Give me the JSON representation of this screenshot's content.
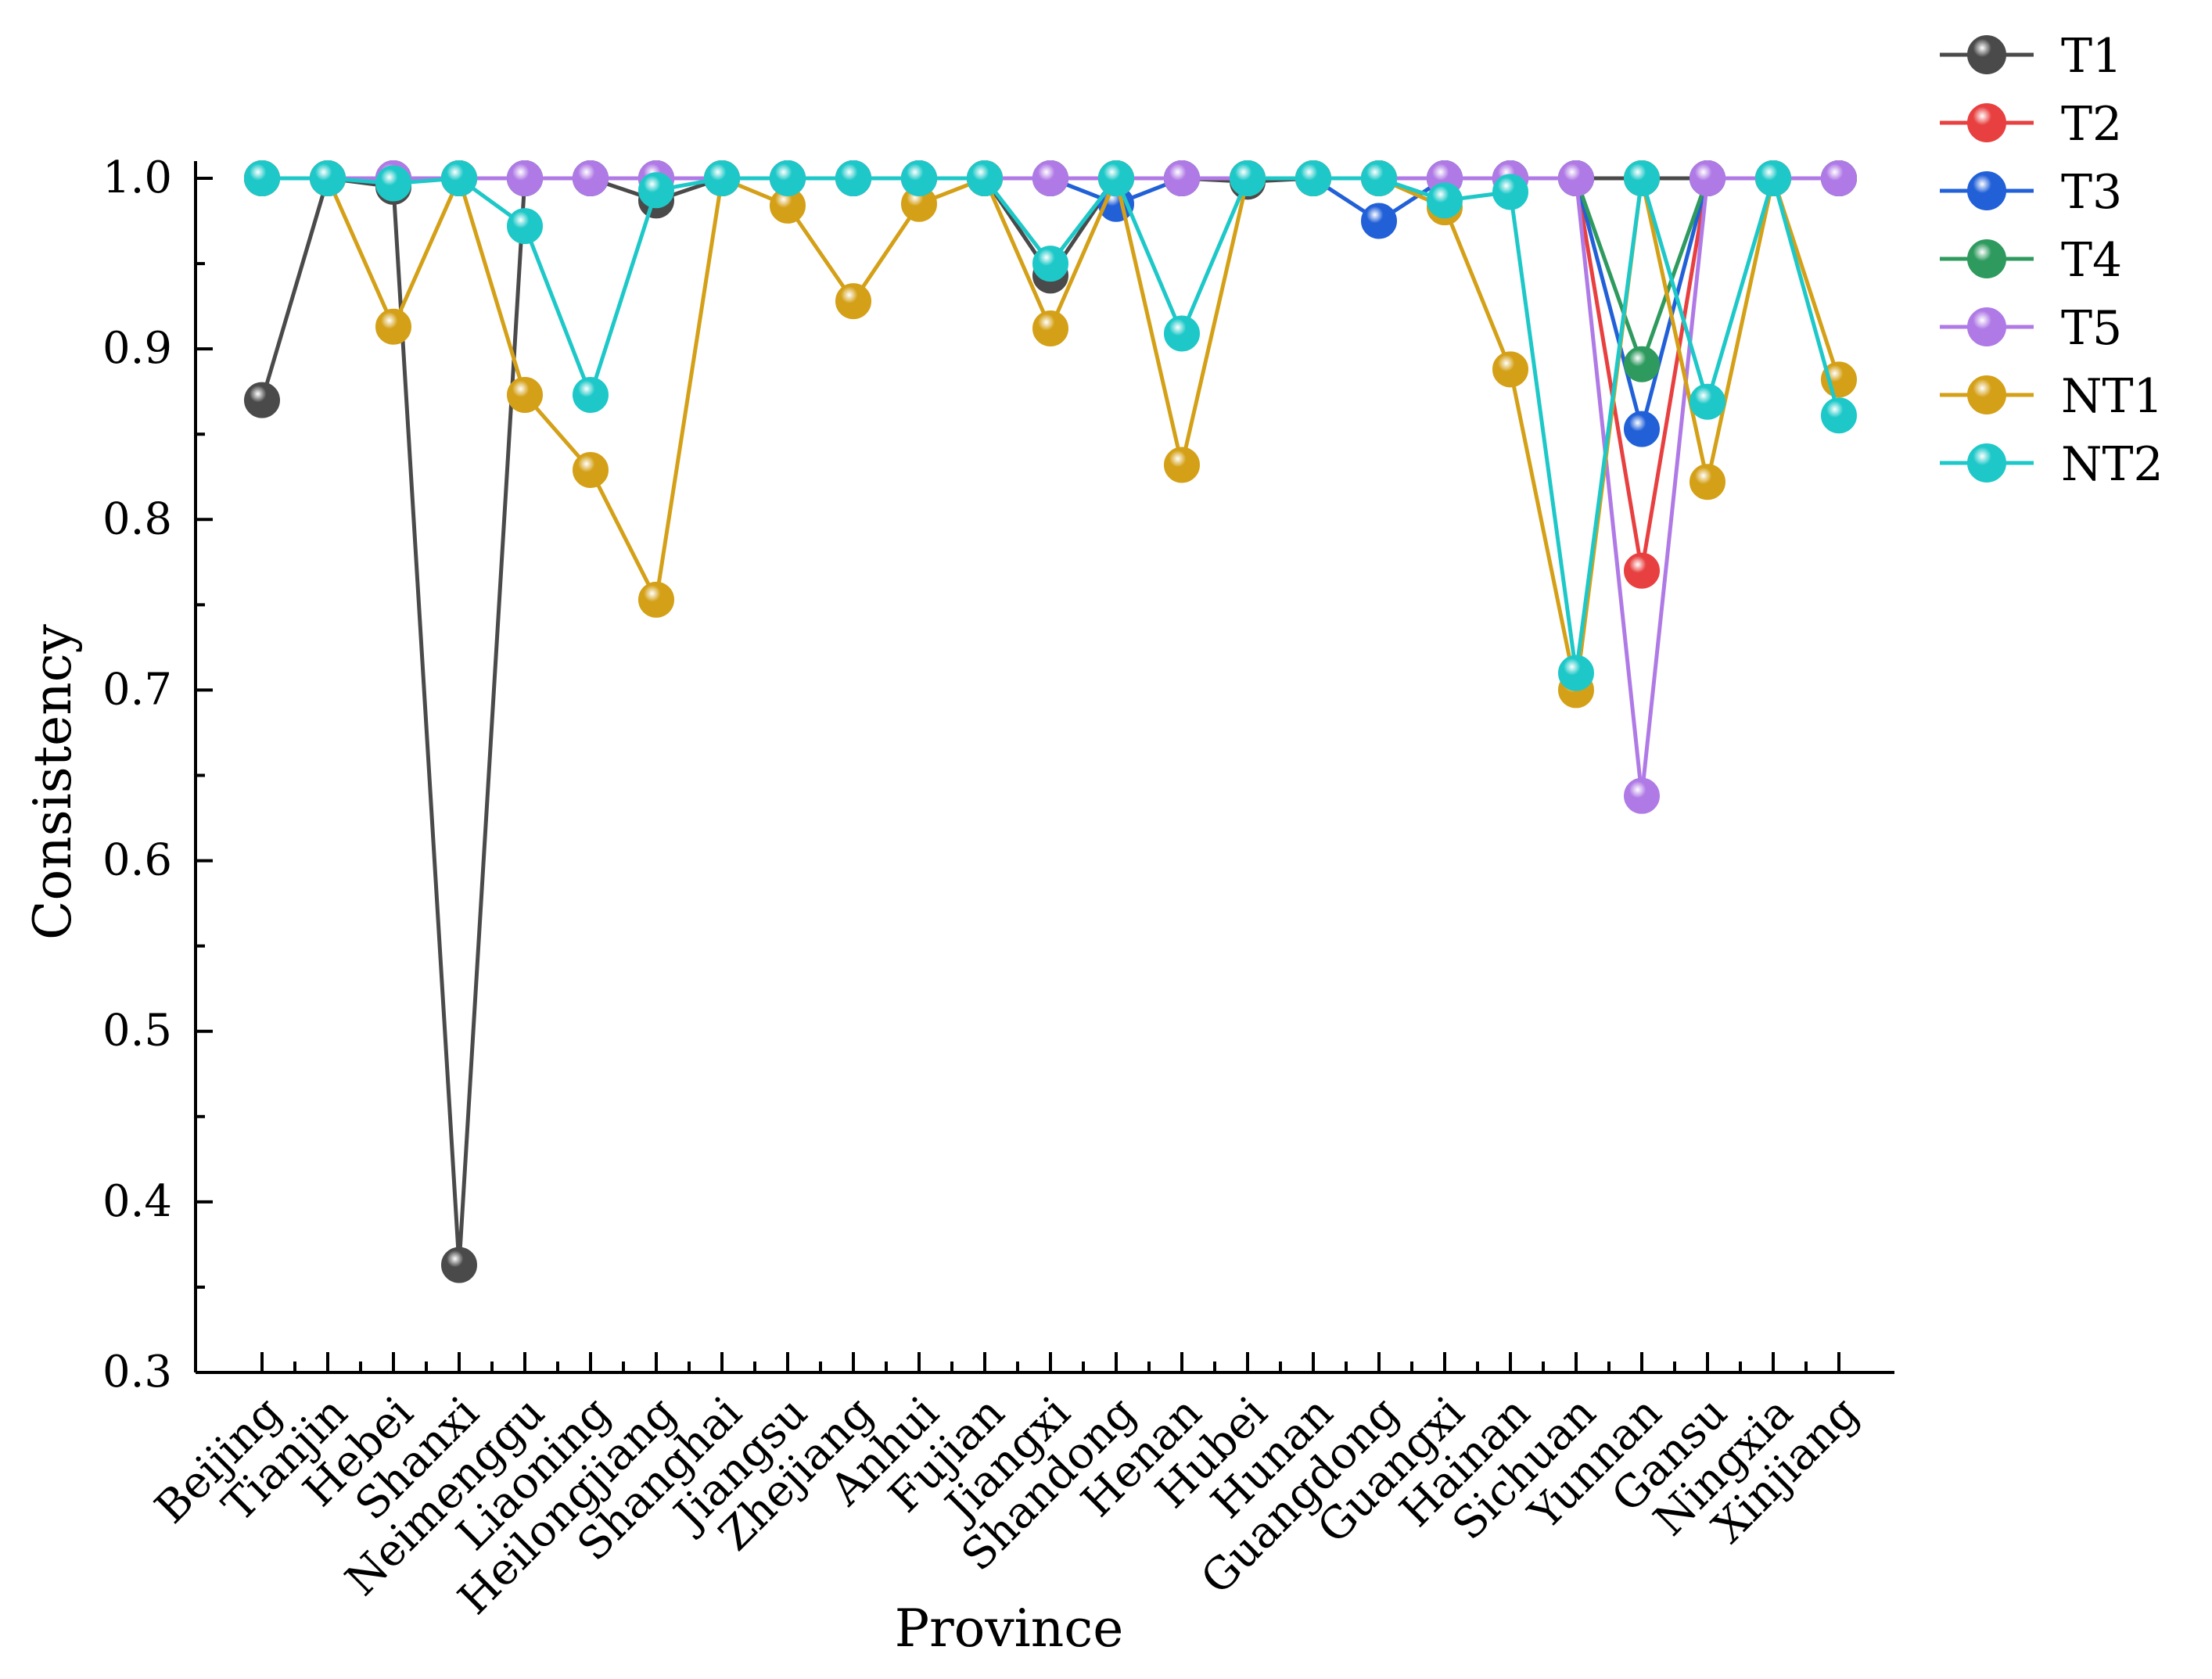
{
  "chart_data": {
    "type": "line",
    "title": "",
    "xlabel": "Province",
    "ylabel": "Consistency",
    "ylim": [
      0.3,
      1.0
    ],
    "yticks": [
      0.3,
      0.4,
      0.5,
      0.6,
      0.7,
      0.8,
      0.9,
      1.0
    ],
    "ytick_labels": [
      "0.3",
      "0.4",
      "0.5",
      "0.6",
      "0.7",
      "0.8",
      "0.9",
      "1.0"
    ],
    "legend_position": "top-right, outside plot",
    "categories": [
      "Beijing",
      "Tianjin",
      "Hebei",
      "Shanxi",
      "Neimenggu",
      "Liaoning",
      "Heilongjiang",
      "Shanghai",
      "Jiangsu",
      "Zhejiang",
      "Anhui",
      "Fujian",
      "Jiangxi",
      "Shandong",
      "Henan",
      "Hubei",
      "Hunan",
      "Guangdong",
      "Guangxi",
      "Hainan",
      "Sichuan",
      "Yunnan",
      "Gansu",
      "Ningxia",
      "Xinjiang"
    ],
    "series": [
      {
        "name": "T1",
        "color": "#4a4a4a",
        "values": [
          0.87,
          1.0,
          0.995,
          0.363,
          1.0,
          1.0,
          0.987,
          1.0,
          1.0,
          1.0,
          1.0,
          1.0,
          0.943,
          1.0,
          1.0,
          0.998,
          1.0,
          1.0,
          1.0,
          1.0,
          1.0,
          1.0,
          1.0,
          1.0,
          1.0
        ]
      },
      {
        "name": "T2",
        "color": "#e84040",
        "values": [
          1.0,
          1.0,
          1.0,
          1.0,
          1.0,
          1.0,
          1.0,
          1.0,
          1.0,
          1.0,
          1.0,
          1.0,
          1.0,
          1.0,
          1.0,
          1.0,
          1.0,
          1.0,
          1.0,
          1.0,
          1.0,
          0.77,
          1.0,
          1.0,
          1.0
        ]
      },
      {
        "name": "T3",
        "color": "#2260d8",
        "values": [
          1.0,
          1.0,
          1.0,
          1.0,
          1.0,
          1.0,
          1.0,
          1.0,
          1.0,
          1.0,
          1.0,
          1.0,
          1.0,
          0.985,
          1.0,
          1.0,
          1.0,
          0.975,
          1.0,
          1.0,
          1.0,
          0.853,
          1.0,
          1.0,
          1.0
        ]
      },
      {
        "name": "T4",
        "color": "#2e9a5e",
        "values": [
          1.0,
          1.0,
          1.0,
          1.0,
          1.0,
          1.0,
          1.0,
          1.0,
          1.0,
          1.0,
          1.0,
          1.0,
          1.0,
          1.0,
          1.0,
          1.0,
          1.0,
          1.0,
          1.0,
          1.0,
          1.0,
          0.891,
          1.0,
          1.0,
          1.0
        ]
      },
      {
        "name": "T5",
        "color": "#b07ae6",
        "values": [
          1.0,
          1.0,
          1.0,
          1.0,
          1.0,
          1.0,
          1.0,
          1.0,
          1.0,
          1.0,
          1.0,
          1.0,
          1.0,
          1.0,
          1.0,
          1.0,
          1.0,
          1.0,
          1.0,
          1.0,
          1.0,
          0.638,
          1.0,
          1.0,
          1.0
        ]
      },
      {
        "name": "NT1",
        "color": "#d4a017",
        "values": [
          1.0,
          1.0,
          0.913,
          1.0,
          0.873,
          0.829,
          0.753,
          1.0,
          0.984,
          0.928,
          0.985,
          1.0,
          0.912,
          1.0,
          0.832,
          1.0,
          1.0,
          1.0,
          0.983,
          0.888,
          0.7,
          1.0,
          0.822,
          1.0,
          0.882
        ]
      },
      {
        "name": "NT2",
        "color": "#1ec8c8",
        "values": [
          1.0,
          1.0,
          0.997,
          1.0,
          0.972,
          0.873,
          0.993,
          1.0,
          1.0,
          1.0,
          1.0,
          1.0,
          0.95,
          1.0,
          0.909,
          1.0,
          1.0,
          1.0,
          0.987,
          0.992,
          0.71,
          1.0,
          0.869,
          1.0,
          0.861
        ]
      }
    ]
  }
}
